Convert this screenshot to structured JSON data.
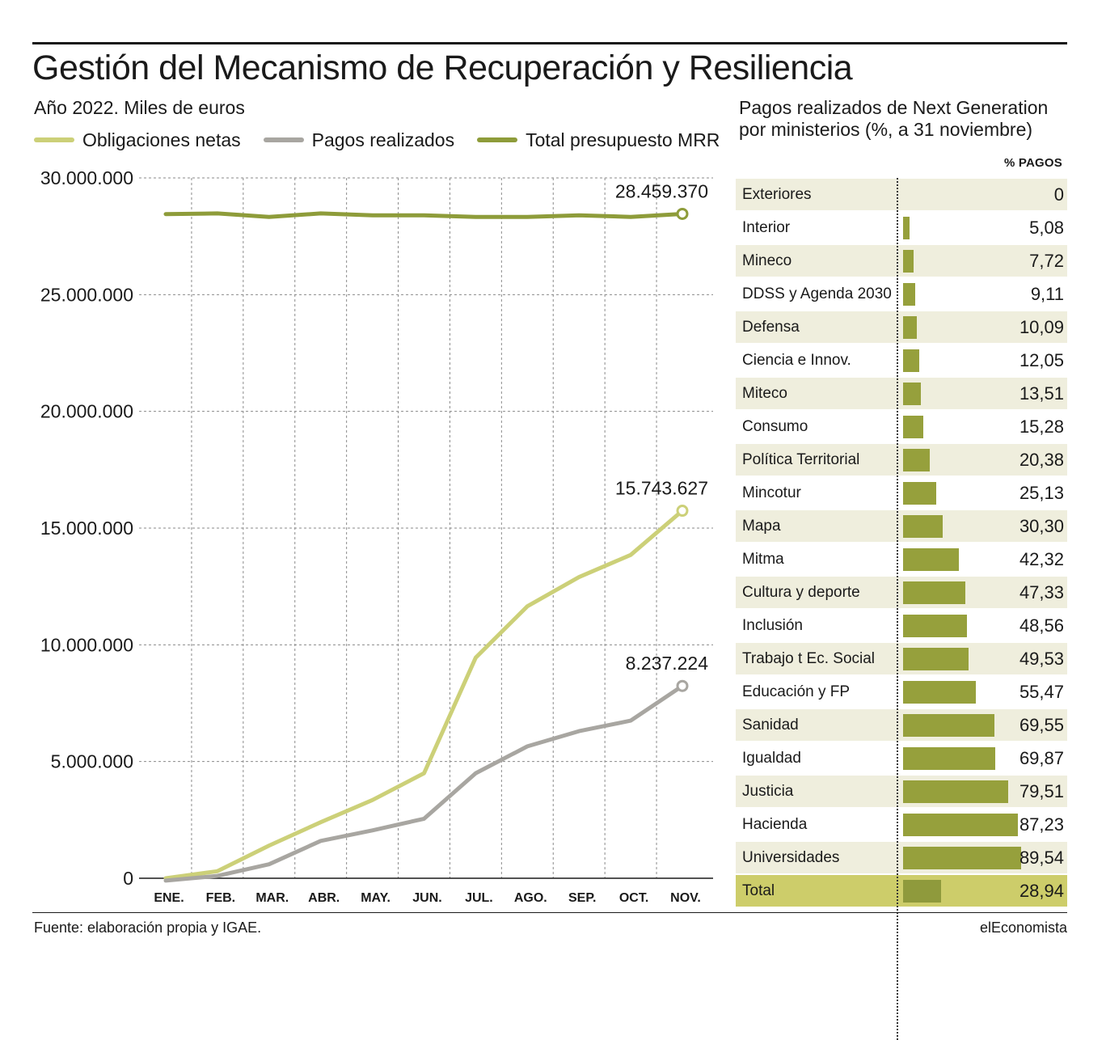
{
  "header": {
    "title": "Gestión del Mecanismo de Recuperación y Resiliencia",
    "subtitle": "Año 2022. Miles de euros"
  },
  "legend": [
    {
      "label": "Obligaciones netas",
      "color": "#ccd078"
    },
    {
      "label": "Pagos realizados",
      "color": "#a8a6a1"
    },
    {
      "label": "Total presupuesto MRR",
      "color": "#8e9c3a"
    }
  ],
  "chart_data": [
    {
      "type": "line",
      "title": "Gestión del Mecanismo de Recuperación y Resiliencia",
      "subtitle": "Año 2022. Miles de euros",
      "categories": [
        "ENE.",
        "FEB.",
        "MAR.",
        "ABR.",
        "MAY.",
        "JUN.",
        "JUL.",
        "AGO.",
        "SEP.",
        "OCT.",
        "NOV."
      ],
      "ylim": [
        0,
        30000000
      ],
      "yticks": [
        0,
        5000000,
        10000000,
        15000000,
        20000000,
        25000000,
        30000000
      ],
      "ytick_labels": [
        "0",
        "5.000.000",
        "10.000.000",
        "15.000.000",
        "20.000.000",
        "25.000.000",
        "30.000.000"
      ],
      "grid": true,
      "series": [
        {
          "name": "Total presupuesto MRR",
          "color": "#8e9c3a",
          "values": [
            28450000,
            28480000,
            28330000,
            28480000,
            28400000,
            28400000,
            28330000,
            28330000,
            28400000,
            28330000,
            28459370
          ],
          "end_label": "28.459.370"
        },
        {
          "name": "Obligaciones netas",
          "color": "#ccd078",
          "values": [
            0,
            300000,
            1400000,
            2400000,
            3350000,
            4500000,
            9450000,
            11650000,
            12900000,
            13850000,
            15743627
          ],
          "end_label": "15.743.627"
        },
        {
          "name": "Pagos realizados",
          "color": "#a8a6a1",
          "values": [
            -100000,
            100000,
            600000,
            1600000,
            2050000,
            2550000,
            4500000,
            5650000,
            6300000,
            6750000,
            8237224
          ],
          "end_label": "8.237.224"
        }
      ]
    },
    {
      "type": "bar",
      "orientation": "horizontal",
      "title": "Pagos realizados de Next Generation por ministerios (%, a 31 noviembre)",
      "value_header": "% PAGOS",
      "categories": [
        "Exteriores",
        "Interior",
        "Mineco",
        "DDSS y Agenda 2030",
        "Defensa",
        "Ciencia e Innov.",
        "Miteco",
        "Consumo",
        "Política Territorial",
        "Mincotur",
        "Mapa",
        "Mitma",
        "Cultura y deporte",
        "Inclusión",
        "Trabajo t Ec. Social",
        "Educación y FP",
        "Sanidad",
        "Igualdad",
        "Justicia",
        "Hacienda",
        "Universidades",
        "Total"
      ],
      "values": [
        0,
        5.08,
        7.72,
        9.11,
        10.09,
        12.05,
        13.51,
        15.28,
        20.38,
        25.13,
        30.3,
        42.32,
        47.33,
        48.56,
        49.53,
        55.47,
        69.55,
        69.87,
        79.51,
        87.23,
        89.54,
        28.94
      ],
      "value_labels": [
        "0",
        "5,08",
        "7,72",
        "9,11",
        "10,09",
        "12,05",
        "13,51",
        "15,28",
        "20,38",
        "25,13",
        "30,30",
        "42,32",
        "47,33",
        "48,56",
        "49,53",
        "55,47",
        "69,55",
        "69,87",
        "79,51",
        "87,23",
        "89,54",
        "28,94"
      ],
      "xlim": [
        0,
        100
      ],
      "bar_color": "#96a03c",
      "total_bar_color": "#8f9a3c"
    }
  ],
  "right_panel": {
    "title_line1": "Pagos realizados de Next Generation",
    "title_line2": "por ministerios (%, a 31 noviembre)"
  },
  "footer": {
    "source": "Fuente: elaboración propia y IGAE.",
    "brand": "elEconomista"
  }
}
